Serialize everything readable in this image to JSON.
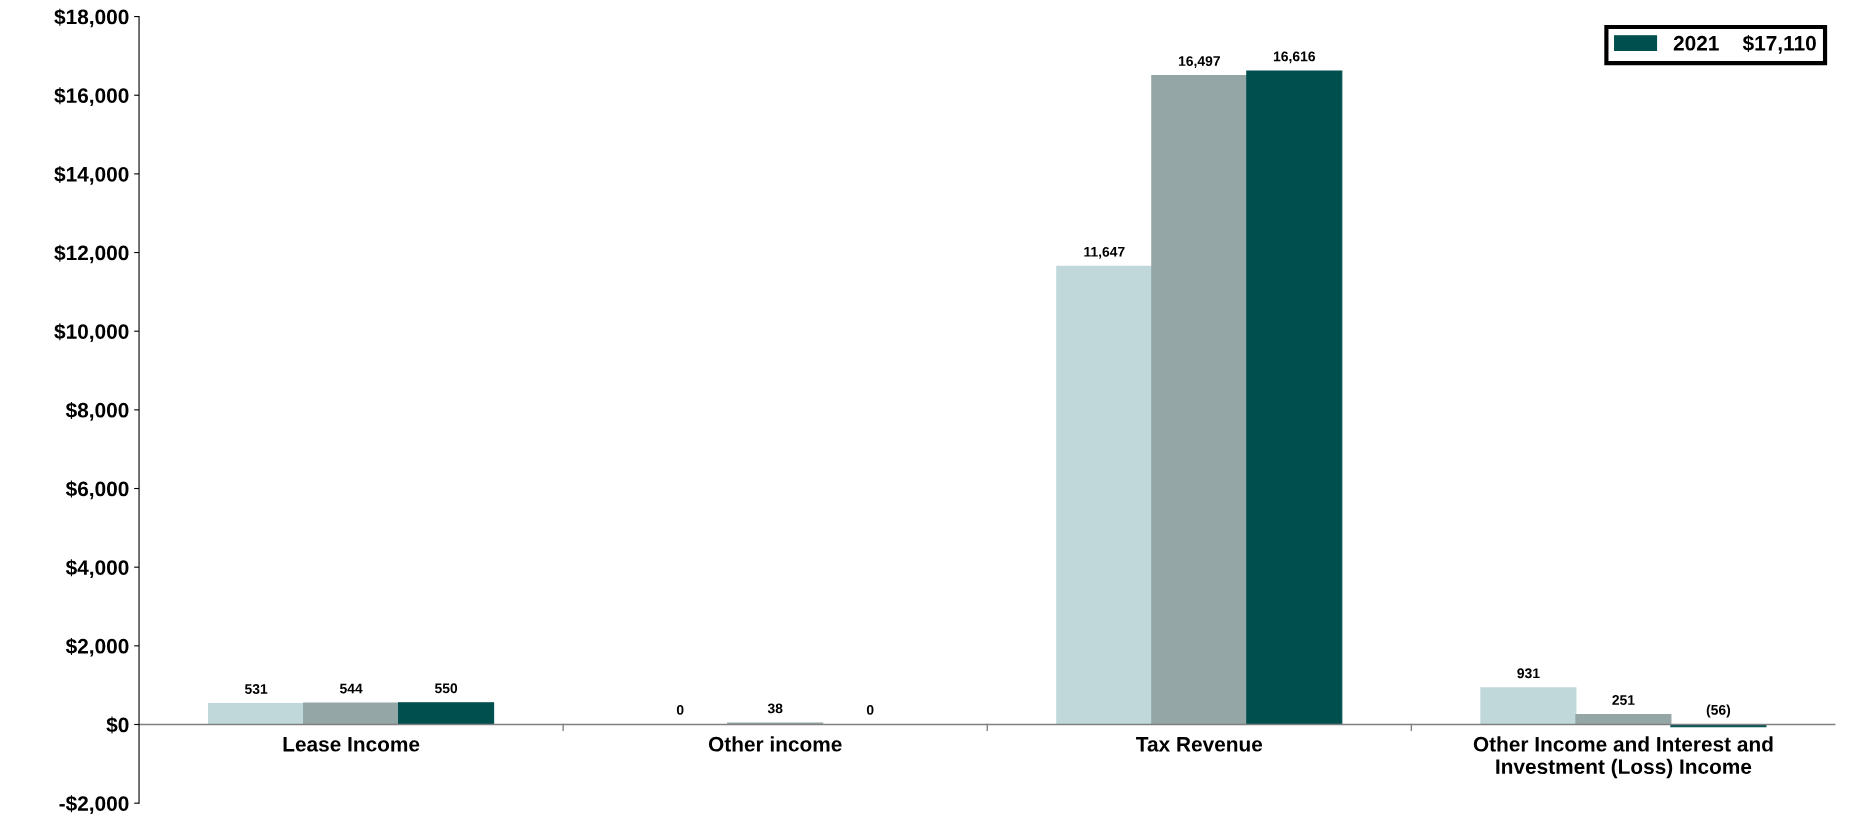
{
  "chart_data": {
    "type": "bar",
    "categories": [
      "Lease Income",
      "Other income",
      "Tax Revenue",
      "Other Income and Interest and\nInvestment (Loss) Income"
    ],
    "series": [
      {
        "color": "#c0d8d9",
        "values": [
          531,
          0,
          11647,
          931
        ],
        "value_labels": [
          "531",
          "0",
          "11,647",
          "931"
        ]
      },
      {
        "color": "#94a6a5",
        "values": [
          544,
          38,
          16497,
          251
        ],
        "value_labels": [
          "544",
          "38",
          "16,497",
          "251"
        ]
      },
      {
        "name": "2021    $17,110",
        "color": "#004f4f",
        "values": [
          550,
          0,
          16616,
          -56
        ],
        "value_labels": [
          "550",
          "0",
          "16,616",
          "(56)"
        ]
      }
    ],
    "ylim": [
      -2000,
      18000
    ],
    "yticks": [
      {
        "value": -2000,
        "label": "-$2,000"
      },
      {
        "value": 0,
        "label": "$0"
      },
      {
        "value": 2000,
        "label": "$2,000"
      },
      {
        "value": 4000,
        "label": "$4,000"
      },
      {
        "value": 6000,
        "label": "$6,000"
      },
      {
        "value": 8000,
        "label": "$8,000"
      },
      {
        "value": 10000,
        "label": "$10,000"
      },
      {
        "value": 12000,
        "label": "$12,000"
      },
      {
        "value": 14000,
        "label": "$14,000"
      },
      {
        "value": 16000,
        "label": "$16,000"
      },
      {
        "value": 18000,
        "label": "$18,000"
      }
    ],
    "grid": false,
    "legend": "top right"
  }
}
